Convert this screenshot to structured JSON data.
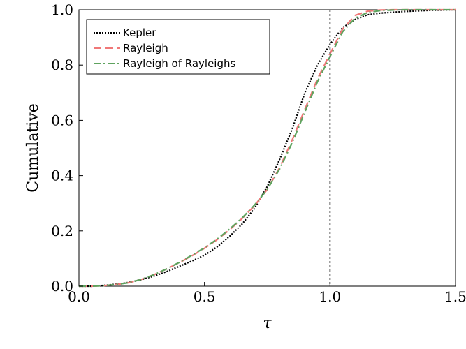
{
  "chart_data": {
    "type": "line",
    "xlabel": "τ",
    "ylabel": "Cumulative",
    "xlim": [
      0.0,
      1.5
    ],
    "ylim": [
      0.0,
      1.0
    ],
    "xticks": [
      "0.0",
      "0.5",
      "1.0",
      "1.5"
    ],
    "yticks": [
      "0.0",
      "0.2",
      "0.4",
      "0.6",
      "0.8",
      "1.0"
    ],
    "xtick_values": [
      0.0,
      0.5,
      1.0,
      1.5
    ],
    "ytick_values": [
      0.0,
      0.2,
      0.4,
      0.6,
      0.8,
      1.0
    ],
    "grid": false,
    "legend_position": "top-left",
    "vline": {
      "x": 1.0,
      "color": "#707070",
      "style": "dotted"
    },
    "series": [
      {
        "name": "Kepler",
        "color": "#000000",
        "style": "dotted",
        "x": [
          0.0,
          0.05,
          0.1,
          0.15,
          0.2,
          0.25,
          0.3,
          0.35,
          0.4,
          0.45,
          0.5,
          0.55,
          0.6,
          0.65,
          0.7,
          0.75,
          0.8,
          0.85,
          0.9,
          0.95,
          1.0,
          1.05,
          1.1,
          1.15,
          1.2,
          1.25,
          1.3,
          1.35,
          1.4,
          1.45,
          1.5
        ],
        "y": [
          0.0,
          0.0,
          0.003,
          0.007,
          0.014,
          0.024,
          0.037,
          0.053,
          0.072,
          0.091,
          0.112,
          0.142,
          0.18,
          0.225,
          0.282,
          0.36,
          0.46,
          0.57,
          0.7,
          0.8,
          0.875,
          0.935,
          0.965,
          0.982,
          0.988,
          0.991,
          0.994,
          0.996,
          0.998,
          0.999,
          1.0
        ]
      },
      {
        "name": "Rayleigh",
        "color": "#f07878",
        "style": "dashed",
        "x": [
          0.0,
          0.05,
          0.1,
          0.15,
          0.2,
          0.25,
          0.3,
          0.35,
          0.4,
          0.45,
          0.5,
          0.55,
          0.6,
          0.65,
          0.7,
          0.75,
          0.8,
          0.85,
          0.9,
          0.95,
          1.0,
          1.05,
          1.1,
          1.15,
          1.2,
          1.25,
          1.3,
          1.35,
          1.4,
          1.45,
          1.5
        ],
        "y": [
          0.0,
          0.0,
          0.002,
          0.006,
          0.013,
          0.025,
          0.042,
          0.063,
          0.085,
          0.11,
          0.137,
          0.168,
          0.204,
          0.245,
          0.292,
          0.35,
          0.43,
          0.53,
          0.64,
          0.75,
          0.84,
          0.93,
          0.98,
          0.995,
          0.999,
          1.0,
          1.0,
          1.0,
          1.0,
          1.0,
          1.0
        ]
      },
      {
        "name": "Rayleigh of Rayleighs",
        "color": "#5fa35f",
        "style": "dashdot",
        "x": [
          0.0,
          0.05,
          0.1,
          0.15,
          0.2,
          0.25,
          0.3,
          0.35,
          0.4,
          0.45,
          0.5,
          0.55,
          0.6,
          0.65,
          0.7,
          0.75,
          0.8,
          0.85,
          0.9,
          0.95,
          1.0,
          1.05,
          1.1,
          1.15,
          1.2,
          1.25,
          1.3,
          1.35,
          1.4,
          1.45,
          1.5
        ],
        "y": [
          0.0,
          0.0,
          0.002,
          0.006,
          0.013,
          0.025,
          0.042,
          0.063,
          0.086,
          0.112,
          0.139,
          0.17,
          0.206,
          0.247,
          0.294,
          0.35,
          0.425,
          0.52,
          0.63,
          0.74,
          0.83,
          0.92,
          0.97,
          0.99,
          0.997,
          0.999,
          1.0,
          1.0,
          1.0,
          1.0,
          1.0
        ]
      }
    ]
  }
}
